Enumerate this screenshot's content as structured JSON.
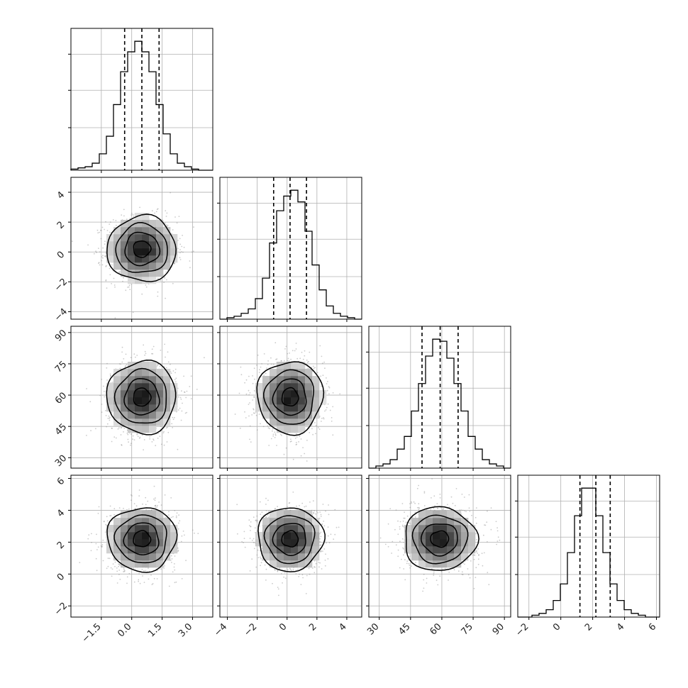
{
  "chart_data": {
    "type": "corner",
    "grid": true,
    "parameters": [
      {
        "id": "p0",
        "range": [
          -3.0,
          4.0
        ],
        "mean": 0.5,
        "std": 0.85,
        "quantiles": {
          "q16": -0.35,
          "q50": 0.5,
          "q84": 1.35
        },
        "ticks": [
          -1.5,
          0.0,
          1.5,
          3.0
        ],
        "tick_labels": [
          "−1.5",
          "0.0",
          "1.5",
          "3.0"
        ],
        "hist_counts": [
          1,
          2,
          3,
          6,
          14,
          29,
          56,
          84,
          101,
          110,
          101,
          84,
          56,
          31,
          14,
          6,
          3,
          1,
          0,
          0
        ]
      },
      {
        "id": "p1",
        "range": [
          -4.5,
          5.0
        ],
        "mean": 0.2,
        "std": 1.1,
        "quantiles": {
          "q16": -0.9,
          "q50": 0.2,
          "q84": 1.3
        },
        "ticks": [
          -4,
          -2,
          0,
          2,
          4
        ],
        "tick_labels": [
          "−4",
          "−2",
          "0",
          "2",
          "4"
        ],
        "hist_counts": [
          0,
          1,
          2,
          4,
          7,
          14,
          28,
          52,
          74,
          84,
          88,
          80,
          60,
          37,
          20,
          9,
          4,
          2,
          1,
          0
        ]
      },
      {
        "id": "p2",
        "range": [
          25.0,
          93.0
        ],
        "mean": 59.0,
        "std": 8.7,
        "quantiles": {
          "q16": 50.5,
          "q50": 59.2,
          "q84": 67.8
        },
        "ticks": [
          30,
          45,
          60,
          75,
          90
        ],
        "tick_labels": [
          "30",
          "45",
          "60",
          "75",
          "90"
        ],
        "hist_counts": [
          0,
          1,
          2,
          4,
          9,
          15,
          27,
          40,
          53,
          61,
          60,
          52,
          40,
          27,
          15,
          9,
          4,
          2,
          1,
          0
        ]
      },
      {
        "id": "p3",
        "range": [
          -2.7,
          6.2
        ],
        "mean": 2.2,
        "std": 1.0,
        "quantiles": {
          "q16": 1.2,
          "q50": 2.2,
          "q84": 3.1
        },
        "ticks": [
          -2,
          0,
          2,
          4,
          6
        ],
        "tick_labels": [
          "−2",
          "0",
          "2",
          "4",
          "6"
        ],
        "hist_counts": [
          0,
          0,
          1,
          2,
          4,
          9,
          18,
          35,
          55,
          70,
          70,
          55,
          35,
          18,
          9,
          4,
          2,
          1,
          0,
          0
        ]
      }
    ],
    "hist_tick_fractions": [
      0.33,
      0.62,
      0.9
    ],
    "contour_levels_sigma": [
      0.5,
      1.0,
      1.5,
      2.0
    ],
    "density_grid_bins": 20,
    "scatter_points_per_panel": 1200,
    "colors": {
      "line": "#000000",
      "grid": "#b0b0b0",
      "scatter": "#8c8c8c",
      "density_max": "#000000",
      "density_min": "#ffffff"
    }
  }
}
